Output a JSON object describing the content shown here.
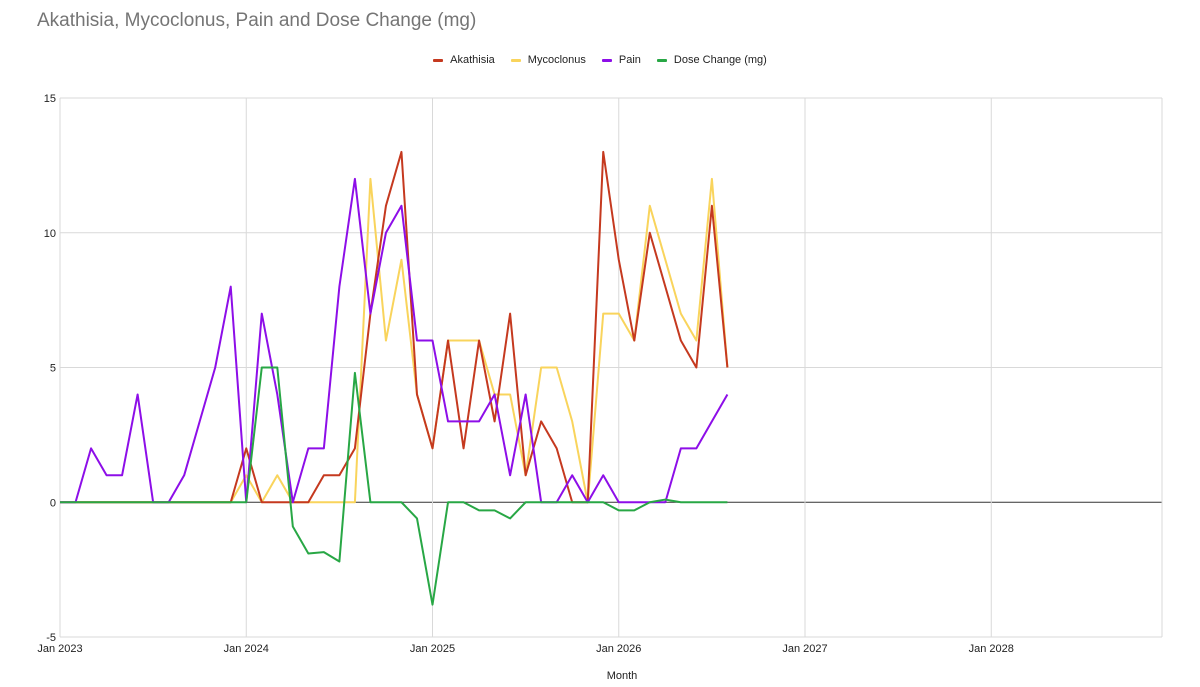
{
  "chart_data": {
    "type": "line",
    "title": "Akathisia, Mycoclonus, Pain and Dose Change (mg)",
    "xlabel": "Month",
    "ylabel": "",
    "ylim": [
      -5,
      15
    ],
    "yticks": [
      "15",
      "10",
      "5",
      "0",
      "-5"
    ],
    "ytick_values": [
      15,
      10,
      5,
      0,
      -5
    ],
    "xlim": [
      "2023-01",
      "2028-12"
    ],
    "xticks": [
      "Jan 2023",
      "Jan 2024",
      "Jan 2025",
      "Jan 2026",
      "Jan 2027",
      "Jan 2028"
    ],
    "xtick_values": [
      "2023-01",
      "2024-01",
      "2025-01",
      "2026-01",
      "2027-01",
      "2028-01"
    ],
    "grid": true,
    "legend_position": "top",
    "x": [
      "2023-01",
      "2023-02",
      "2023-03",
      "2023-04",
      "2023-05",
      "2023-06",
      "2023-07",
      "2023-08",
      "2023-09",
      "2023-10",
      "2023-11",
      "2023-12",
      "2024-01",
      "2024-02",
      "2024-03",
      "2024-04",
      "2024-05",
      "2024-06",
      "2024-07",
      "2024-08",
      "2024-09",
      "2024-10",
      "2024-11",
      "2024-12",
      "2025-01",
      "2025-02",
      "2025-03",
      "2025-04",
      "2025-05",
      "2025-06",
      "2025-07",
      "2025-08",
      "2025-09",
      "2025-10",
      "2025-11",
      "2025-12",
      "2026-01",
      "2026-02",
      "2026-03",
      "2026-04",
      "2026-05",
      "2026-06",
      "2026-07",
      "2026-08"
    ],
    "series": [
      {
        "name": "Akathisia",
        "color": "#c5391f",
        "values": [
          0,
          0,
          0,
          0,
          0,
          0,
          0,
          0,
          0,
          0,
          0,
          0,
          2,
          0,
          0,
          0,
          0,
          1,
          1,
          2,
          7,
          11,
          13,
          4,
          2,
          6,
          2,
          6,
          3,
          7,
          1,
          3,
          2,
          0,
          0,
          13,
          9,
          6,
          10,
          8,
          6,
          5,
          11,
          5
        ]
      },
      {
        "name": "Mycoclonus",
        "color": "#f9d45c",
        "values": [
          0,
          0,
          0,
          0,
          0,
          0,
          0,
          0,
          0,
          0,
          0,
          0,
          1,
          0,
          1,
          0,
          0,
          0,
          0,
          0,
          12,
          6,
          9,
          4,
          2,
          6,
          6,
          6,
          4,
          4,
          1,
          5,
          5,
          3,
          0,
          7,
          7,
          6,
          11,
          9,
          7,
          6,
          12,
          5
        ]
      },
      {
        "name": "Pain",
        "color": "#8d0ee8",
        "values": [
          0,
          0,
          2,
          1,
          1,
          4,
          0,
          0,
          1,
          3,
          5,
          8,
          0,
          7,
          4,
          0,
          2,
          2,
          8,
          12,
          7,
          10,
          11,
          6,
          6,
          3,
          3,
          3,
          4,
          1,
          4,
          0,
          0,
          1,
          0,
          1,
          0,
          0,
          0,
          0,
          2,
          2,
          3,
          4
        ]
      },
      {
        "name": "Dose Change (mg)",
        "color": "#28a745",
        "values": [
          0,
          0,
          0,
          0,
          0,
          0,
          0,
          0,
          0,
          0,
          0,
          0,
          0,
          5,
          5,
          -0.9,
          -1.9,
          -1.85,
          -2.2,
          4.8,
          0,
          0,
          0,
          -0.6,
          -3.8,
          0,
          0,
          -0.3,
          -0.3,
          -0.6,
          0,
          0,
          0,
          0,
          0,
          0,
          -0.3,
          -0.3,
          0,
          0.1,
          0,
          0,
          0,
          0
        ]
      }
    ]
  }
}
